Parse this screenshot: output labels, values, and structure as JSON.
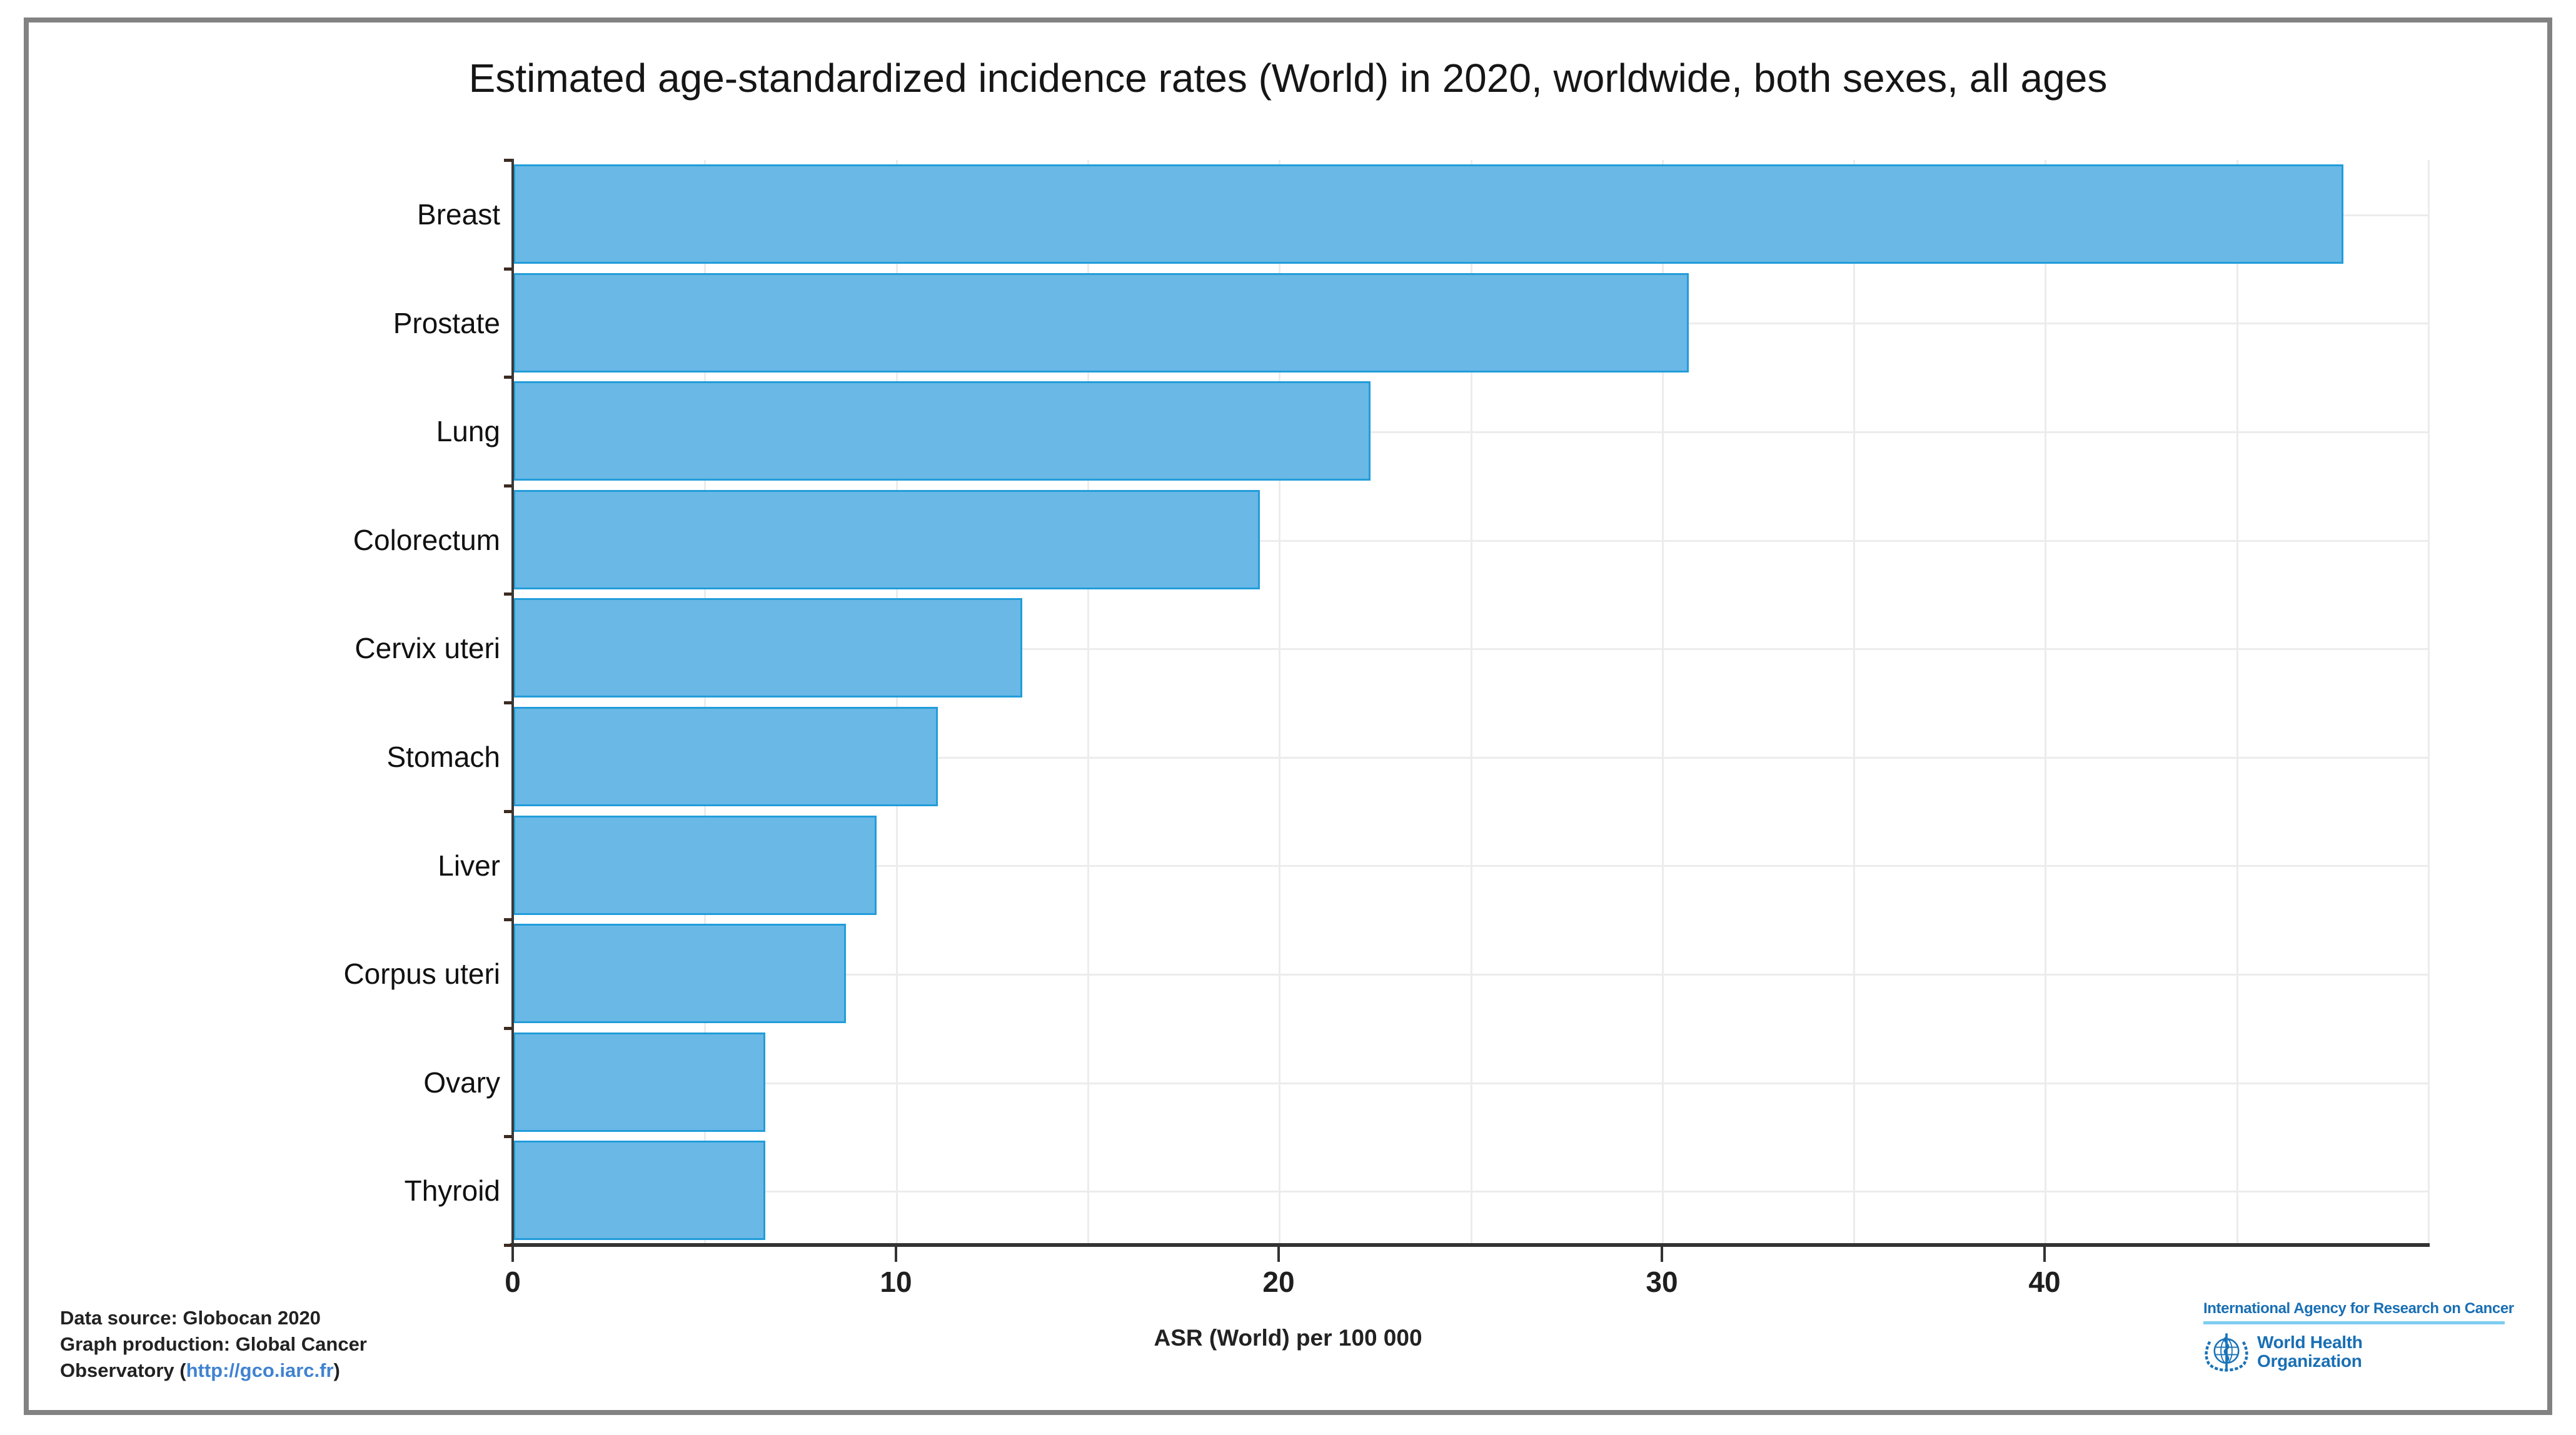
{
  "title": "Estimated age-standardized incidence rates (World) in 2020, worldwide, both sexes, all ages",
  "chart_data": {
    "type": "bar",
    "orientation": "horizontal",
    "title": "Estimated age-standardized incidence rates (World) in 2020, worldwide, both sexes, all ages",
    "categories": [
      "Breast",
      "Prostate",
      "Lung",
      "Colorectum",
      "Cervix uteri",
      "Stomach",
      "Liver",
      "Corpus uteri",
      "Ovary",
      "Thyroid"
    ],
    "values": [
      47.8,
      30.7,
      22.4,
      19.5,
      13.3,
      11.1,
      9.5,
      8.7,
      6.6,
      6.6
    ],
    "xlabel": "ASR (World) per 100 000",
    "ylabel": "",
    "xlim": [
      0,
      50
    ],
    "xticks": [
      0,
      10,
      20,
      30,
      40
    ],
    "minor_grid_step": 5,
    "grid": true,
    "legend": "none",
    "bar_color": "#6ab8e6",
    "bar_border_color": "#219dd9",
    "grid_color": "#ececec",
    "axis_color": "#333333"
  },
  "footer": {
    "line1": "Data source: Globocan 2020",
    "line2": "Graph production: Global Cancer",
    "line3_prefix": "Observatory (",
    "link": "http://gco.iarc.fr",
    "line3_suffix": ")"
  },
  "logos": {
    "iarc_title": "International Agency for Research on Cancer",
    "who_line1": "World Health",
    "who_line2": "Organization",
    "iarc_blue": "#196fb4",
    "underline_blue": "#7dcdf0"
  }
}
